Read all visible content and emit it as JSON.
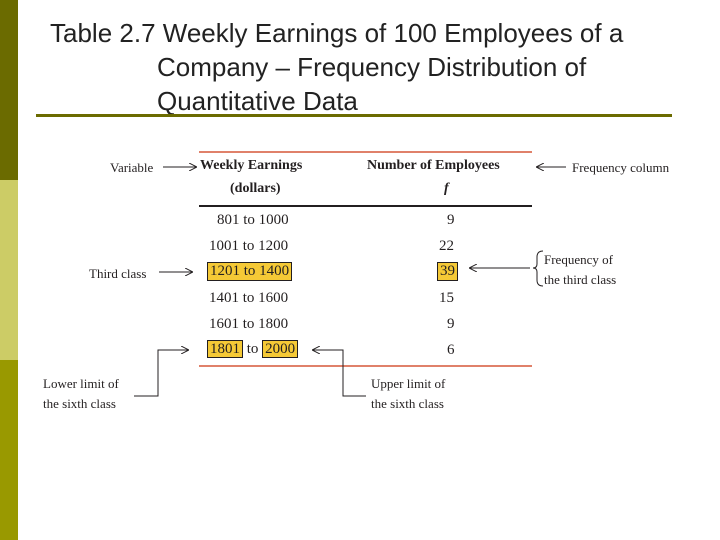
{
  "title": {
    "line1": "Table 2.7 Weekly Earnings of 100 Employees of a",
    "line2": "Company – Frequency Distribution of",
    "line3": "Quantitative Data"
  },
  "table": {
    "col1_header": "Weekly Earnings",
    "col1_subheader": "(dollars)",
    "col2_header": "Number of Employees",
    "col2_subheader": "f",
    "rows": [
      {
        "lower": "801",
        "to": "to",
        "upper": "1000",
        "f": "9"
      },
      {
        "lower": "1001",
        "to": "to",
        "upper": "1200",
        "f": "22"
      },
      {
        "lower": "1201",
        "to": "to",
        "upper": "1400",
        "f": "39"
      },
      {
        "lower": "1401",
        "to": "to",
        "upper": "1600",
        "f": "15"
      },
      {
        "lower": "1601",
        "to": "to",
        "upper": "1800",
        "f": "9"
      },
      {
        "lower": "1801",
        "to": "to",
        "upper": "2000",
        "f": "6"
      }
    ]
  },
  "annotations": {
    "variable": "Variable",
    "frequency_column": "Frequency column",
    "third_class": "Third class",
    "freq_third_line1": "Frequency of",
    "freq_third_line2": "the third class",
    "lower_limit_line1": "Lower limit of",
    "lower_limit_line2": "the sixth class",
    "upper_limit_line1": "Upper limit of",
    "upper_limit_line2": "the sixth class"
  },
  "colors": {
    "accent_rule": "#6b6b00",
    "highlight": "#f5c936",
    "table_rule": "#e0816a"
  }
}
